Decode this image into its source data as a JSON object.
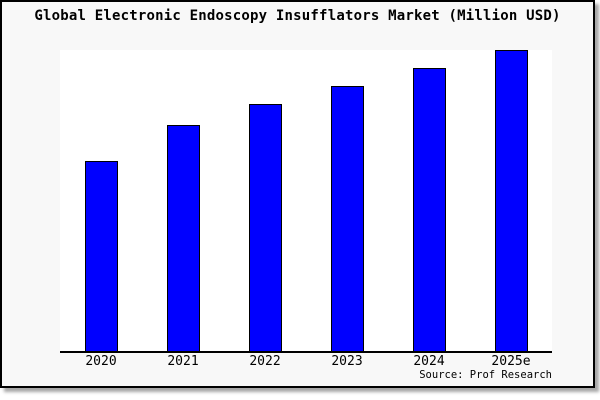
{
  "title": "Global Electronic Endoscopy Insufflators Market (Million USD)",
  "source": "Source: Prof Research",
  "colors": {
    "bar_fill": "#0000ff",
    "bar_border": "#000000",
    "figure_background": "#f8f8f8",
    "plot_background": "#ffffff",
    "text": "#000000"
  },
  "chart_data": {
    "type": "bar",
    "title": "Global Electronic Endoscopy Insufflators Market (Million USD)",
    "categories": [
      "2020",
      "2021",
      "2022",
      "2023",
      "2024",
      "2025e"
    ],
    "values": [
      63,
      75,
      82,
      88,
      94,
      100
    ],
    "value_scale": "relative units; y-axis is unlabeled, values estimated from bar heights with 2025e = 100",
    "xlabel": "",
    "ylabel": "",
    "ylim": [
      0,
      100
    ],
    "grid": false,
    "legend": false,
    "bar_color": "#0000ff",
    "bar_border_color": "#000000",
    "annotations": [
      "Source: Prof Research"
    ]
  }
}
